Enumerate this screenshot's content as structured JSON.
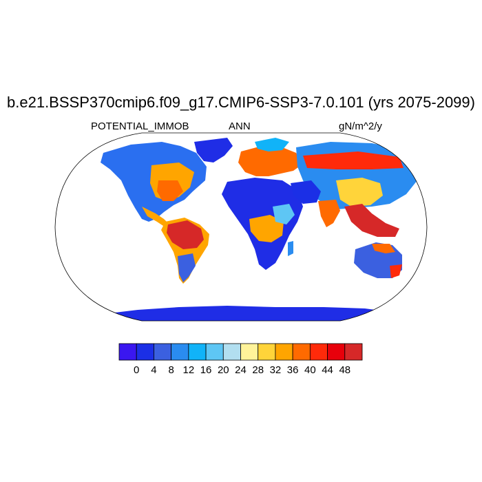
{
  "title": "b.e21.BSSP370cmip6.f09_g17.CMIP6-SSP3-7.0.101 (yrs 2075-2099)",
  "subtitle_left": "POTENTIAL_IMMOB",
  "subtitle_center": "ANN",
  "subtitle_right": "gN/m^2/y",
  "projection": "Robinson (global)",
  "colorbar": {
    "labels": [
      "0",
      "4",
      "8",
      "12",
      "16",
      "20",
      "24",
      "28",
      "32",
      "36",
      "40",
      "44",
      "48"
    ],
    "colors": [
      "#3a17f0",
      "#1b2fe6",
      "#3b60e0",
      "#2a8cf0",
      "#11b3f8",
      "#5ec6f4",
      "#b2dff0",
      "#fff39a",
      "#ffd43a",
      "#ffa500",
      "#ff6a00",
      "#ff2a0a",
      "#e8000b",
      "#d62828"
    ]
  },
  "ocean_color": "#ffffff",
  "land_colors": {
    "antarctica": "#1f2de6",
    "greenland": "#1f2de6",
    "tropics": "#d62828"
  }
}
